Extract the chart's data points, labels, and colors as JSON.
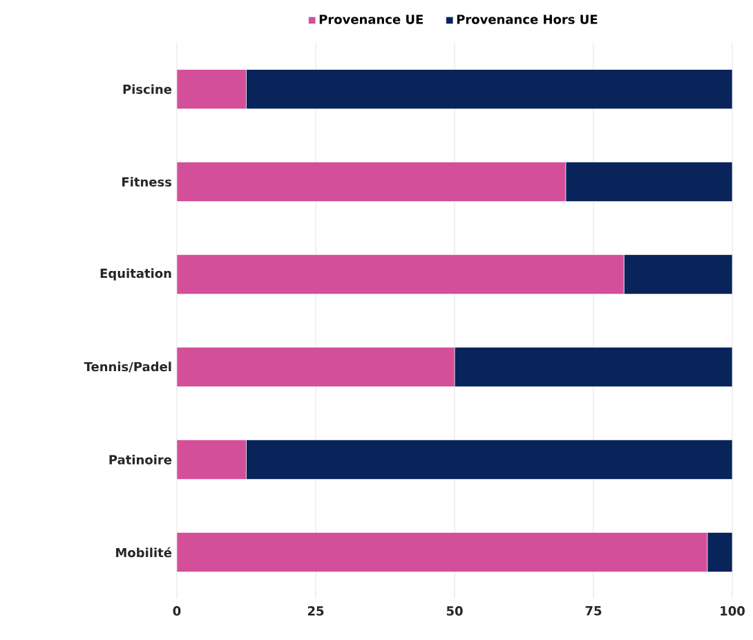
{
  "chart_data": {
    "type": "bar",
    "orientation": "horizontal",
    "stacked": true,
    "categories": [
      "Piscine",
      "Fitness",
      "Equitation",
      "Tennis/Padel",
      "Patinoire",
      "Mobilité"
    ],
    "series": [
      {
        "name": "Provenance UE",
        "color": "#d44f99",
        "values": [
          12.5,
          70,
          80.5,
          50,
          12.5,
          95.5
        ]
      },
      {
        "name": "Provenance Hors UE",
        "color": "#08245a",
        "values": [
          87.5,
          30,
          19.5,
          50,
          87.5,
          4.5
        ]
      }
    ],
    "xlim": [
      0,
      100
    ],
    "xticks": [
      0,
      25,
      50,
      75,
      100
    ],
    "grid": "x",
    "legend": "top"
  }
}
